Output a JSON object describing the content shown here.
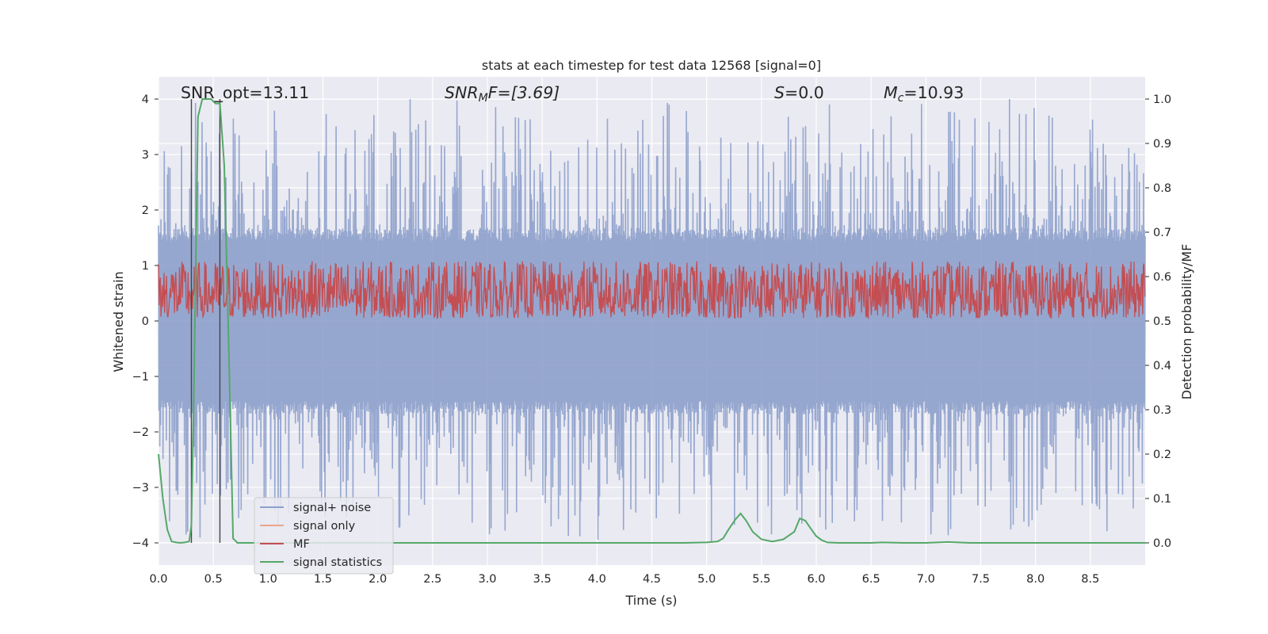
{
  "chart_data": {
    "type": "line",
    "title": "stats at each timestep for test data 12568 [signal=0]",
    "xlabel": "Time (s)",
    "ylabel": "Whitened strain",
    "y2label": "Detection probability/MF",
    "xlim": [
      0.0,
      9.0
    ],
    "ylim": [
      -4.4,
      4.4
    ],
    "y2lim": [
      -0.05,
      1.05
    ],
    "x_ticks": [
      0.0,
      0.5,
      1.0,
      1.5,
      2.0,
      2.5,
      3.0,
      3.5,
      4.0,
      4.5,
      5.0,
      5.5,
      6.0,
      6.5,
      7.0,
      7.5,
      8.0,
      8.5
    ],
    "x_tick_labels": [
      "0.0",
      "0.5",
      "1.0",
      "1.5",
      "2.0",
      "2.5",
      "3.0",
      "3.5",
      "4.0",
      "4.5",
      "5.0",
      "5.5",
      "6.0",
      "6.5",
      "7.0",
      "7.5",
      "8.0",
      "8.5"
    ],
    "y_ticks": [
      4,
      3,
      2,
      1,
      0,
      -1,
      -2,
      -3,
      -4
    ],
    "y_tick_labels": [
      "4",
      "3",
      "2",
      "1",
      "0",
      "−1",
      "−2",
      "−3",
      "−4"
    ],
    "y2_ticks": [
      1.0,
      0.9,
      0.8,
      0.7,
      0.6,
      0.5,
      0.4,
      0.3,
      0.2,
      0.1,
      0.0
    ],
    "y2_tick_labels": [
      "1.0",
      "0.9",
      "0.8",
      "0.7",
      "0.6",
      "0.5",
      "0.4",
      "0.3",
      "0.2",
      "0.1",
      "0.0"
    ],
    "grid": true,
    "annotations": {
      "snr_opt": "SNR_opt=13.11",
      "snr_mf_italic": "SNR",
      "snr_mf_sub": "M",
      "snr_mf_tail": "F=[3.69]",
      "s_italic": "S",
      "s_value": "=0.0",
      "mc_italic": "M",
      "mc_sub": "c",
      "mc_value": "=10.93"
    },
    "vertical_markers_x": [
      0.3,
      0.56
    ],
    "series": [
      {
        "name": "signal+ noise",
        "color": "#8da0cb",
        "description": "whitened strain noise, approx. symmetric about 0, peaks about ±4",
        "envelope": {
          "core": 1.6,
          "max": 4.0,
          "min": -4.0
        }
      },
      {
        "name": "signal only",
        "color": "#e8a68b",
        "values": []
      },
      {
        "name": "MF",
        "color": "#c44e52",
        "description": "matched-filter output on secondary axis, ~0.5 to 0.63",
        "range_y2": [
          0.5,
          0.635
        ]
      },
      {
        "name": "signal statistics",
        "color": "#55a868",
        "axis": "y2",
        "x": [
          0.0,
          0.04,
          0.08,
          0.12,
          0.16,
          0.2,
          0.24,
          0.28,
          0.3,
          0.32,
          0.36,
          0.4,
          0.44,
          0.48,
          0.52,
          0.56,
          0.6,
          0.64,
          0.68,
          0.72,
          0.76,
          0.8,
          1.0,
          2.0,
          3.0,
          4.0,
          4.8,
          5.0,
          5.1,
          5.15,
          5.2,
          5.26,
          5.31,
          5.36,
          5.42,
          5.5,
          5.6,
          5.7,
          5.8,
          5.85,
          5.9,
          5.95,
          6.0,
          6.05,
          6.1,
          6.2,
          6.5,
          6.6,
          6.8,
          7.0,
          7.2,
          7.4,
          8.0,
          9.0
        ],
        "y": [
          0.2,
          0.1,
          0.03,
          0.003,
          0.001,
          0.0,
          0.001,
          0.003,
          0.04,
          0.3,
          0.96,
          1.0,
          1.0,
          1.0,
          0.99,
          0.99,
          0.85,
          0.45,
          0.01,
          0.0,
          0.0,
          0.0,
          0.0,
          0.0,
          0.0,
          0.0,
          0.0,
          0.001,
          0.003,
          0.01,
          0.03,
          0.052,
          0.066,
          0.05,
          0.025,
          0.008,
          0.003,
          0.008,
          0.025,
          0.055,
          0.05,
          0.032,
          0.015,
          0.006,
          0.001,
          0.0,
          0.0,
          0.001,
          0.0,
          0.0,
          0.002,
          0.0,
          0.0,
          0.0
        ]
      }
    ],
    "legend": {
      "placement": "lower-left",
      "entries": [
        "signal+ noise",
        "signal only",
        "MF",
        "signal statistics"
      ]
    }
  }
}
